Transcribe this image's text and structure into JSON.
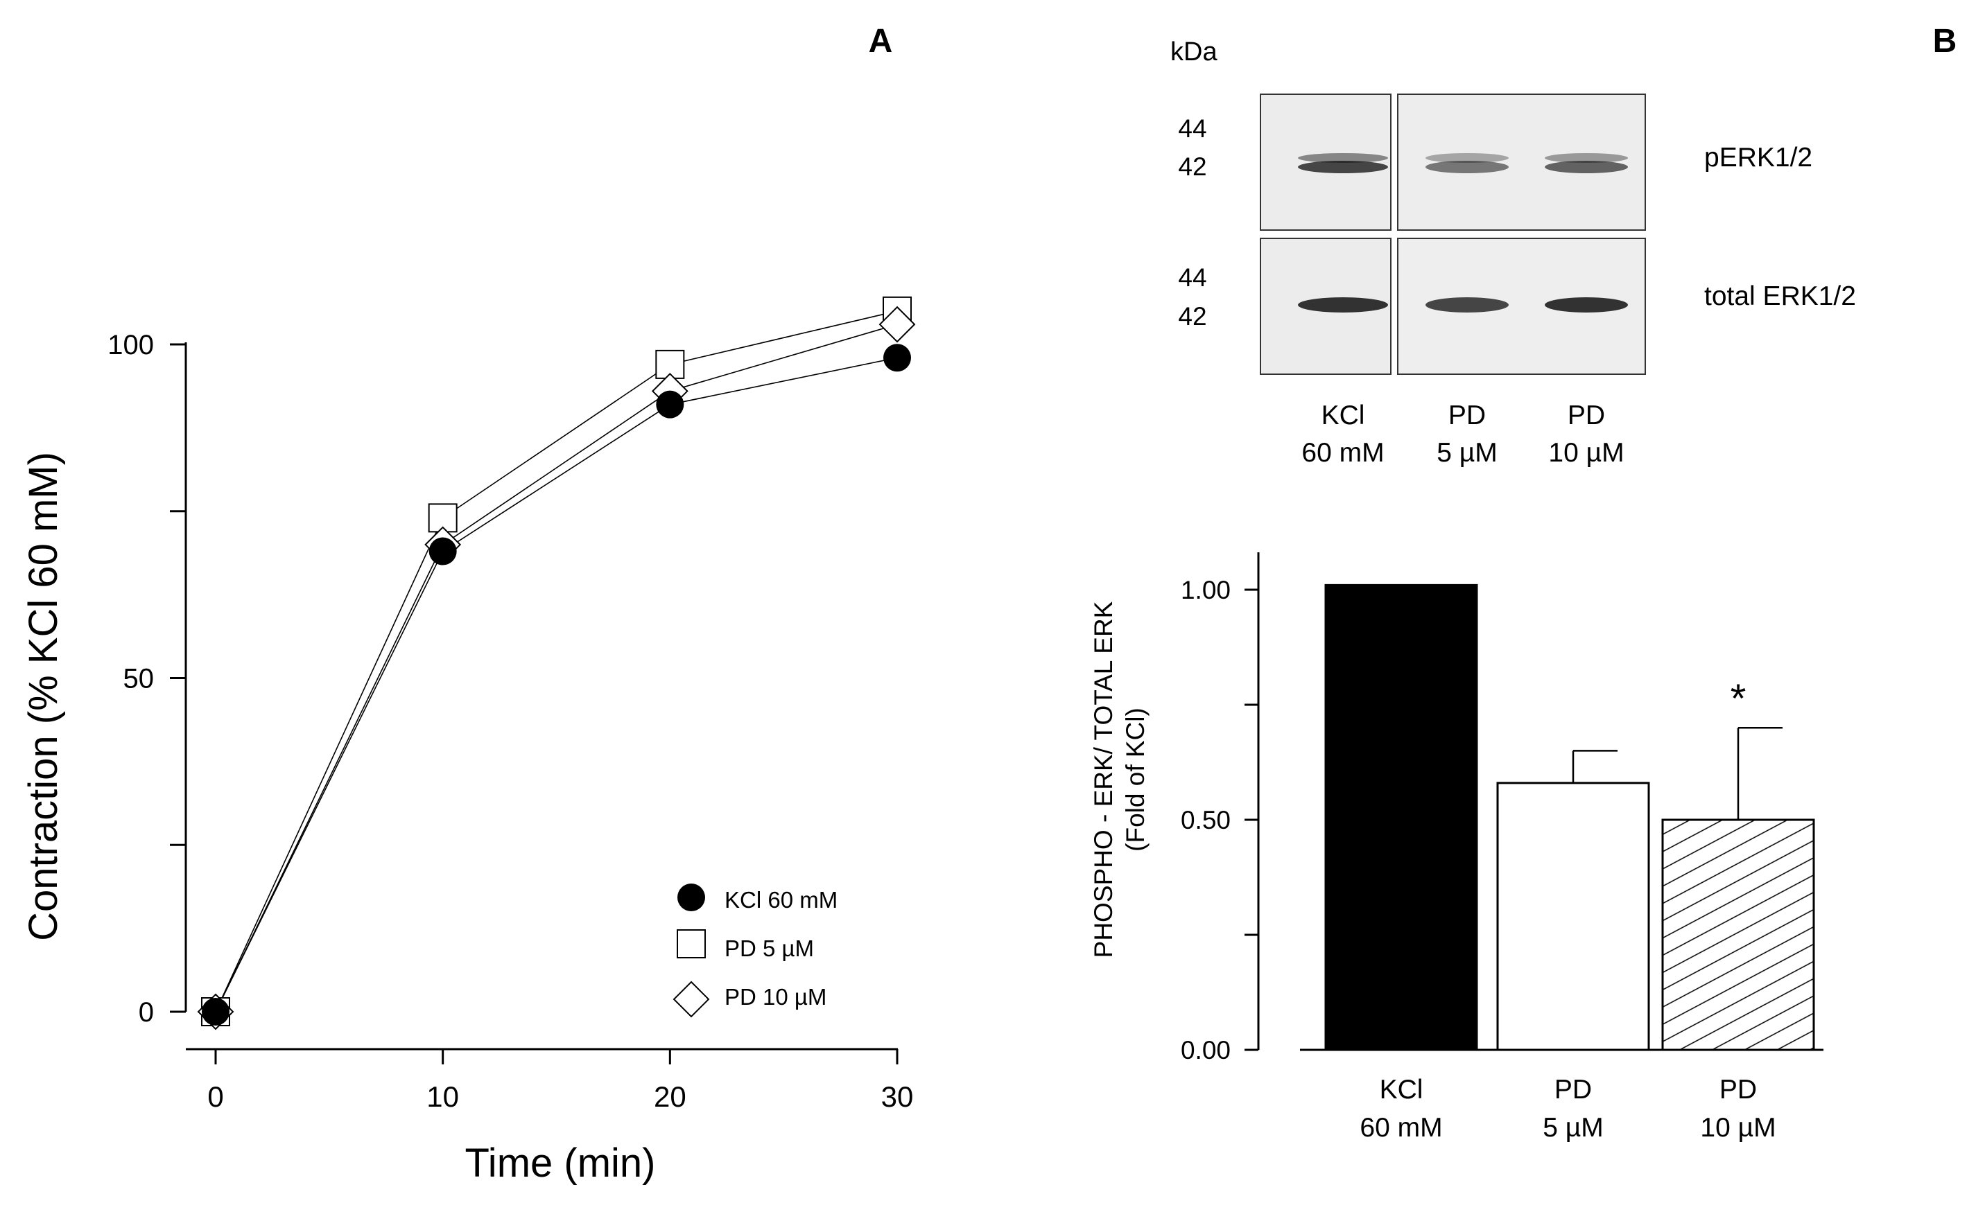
{
  "panel_a": {
    "panel_label": "A",
    "chart_data": {
      "type": "line",
      "xlabel": "Time (min)",
      "ylabel": "Contraction (% KCl 60 mM)",
      "xlim": [
        0,
        30
      ],
      "ylim": [
        0,
        100
      ],
      "xticks": [
        0,
        10,
        20,
        30
      ],
      "xtick_labels": [
        "0",
        "10",
        "20",
        "30"
      ],
      "yticks": [
        0,
        25,
        50,
        75,
        100
      ],
      "ytick_labels": [
        "0",
        "",
        "50",
        "",
        "100"
      ],
      "grid": false,
      "legend_position": "bottom-right",
      "series": [
        {
          "name": "KCl 60 mM",
          "marker": "filled-circle",
          "x": [
            0,
            10,
            20,
            30
          ],
          "y": [
            0,
            69,
            91,
            98
          ]
        },
        {
          "name": "PD 5 µM",
          "marker": "open-square",
          "x": [
            0,
            10,
            20,
            30
          ],
          "y": [
            0,
            74,
            97,
            105
          ],
          "error": [
            0,
            0,
            1,
            2
          ]
        },
        {
          "name": "PD 10 µM",
          "marker": "open-diamond",
          "x": [
            0,
            10,
            20,
            30
          ],
          "y": [
            0,
            70,
            93,
            103
          ]
        }
      ]
    }
  },
  "panel_b": {
    "panel_label": "B",
    "blot": {
      "unit_label": "kDa",
      "rows": [
        {
          "mw_labels": [
            "44",
            "42"
          ],
          "label": "pERK1/2",
          "band_intensity": [
            0.85,
            0.6,
            0.7
          ]
        },
        {
          "mw_labels": [
            "44",
            "42"
          ],
          "label": "total ERK1/2",
          "band_intensity": [
            0.95,
            0.85,
            0.95
          ]
        }
      ],
      "lanes": [
        {
          "line1": "KCl",
          "line2": "60 mM"
        },
        {
          "line1": "PD",
          "line2": "5 µM"
        },
        {
          "line1": "PD",
          "line2": "10 µM"
        }
      ]
    },
    "chart_data": {
      "type": "bar",
      "ylabel_line1": "PHOSPHO - ERK/ TOTAL ERK",
      "ylabel_line2": "(Fold of KCl)",
      "categories": [
        {
          "line1": "KCl",
          "line2": "60 mM"
        },
        {
          "line1": "PD",
          "line2": "5 µM"
        },
        {
          "line1": "PD",
          "line2": "10 µM"
        }
      ],
      "values": [
        1.01,
        0.58,
        0.5
      ],
      "errors": [
        0,
        0.07,
        0.2
      ],
      "fills": [
        "solid-black",
        "white",
        "hatched"
      ],
      "significance": [
        "",
        "",
        "*"
      ],
      "ylim": [
        0,
        1.1
      ],
      "yticks": [
        0,
        0.25,
        0.5,
        0.75,
        1.0
      ],
      "ytick_labels": [
        "0.00",
        "",
        "0.50",
        "",
        "1.00"
      ],
      "grid": false
    }
  }
}
